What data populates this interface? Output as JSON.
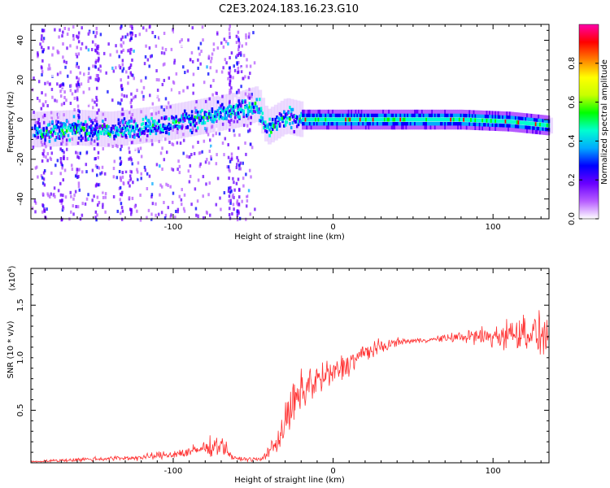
{
  "title": "C2E3.2024.183.16.23.G10",
  "chart_data": [
    {
      "type": "heatmap",
      "panel": "spectrogram",
      "xlabel": "Height of straight line (km)",
      "ylabel": "Frequency (Hz)",
      "xlim": [
        -189,
        135
      ],
      "ylim": [
        -50,
        48
      ],
      "x_ticks": [
        -100,
        0,
        100
      ],
      "x_tick_labels": [
        "-100",
        "0",
        "100"
      ],
      "y_ticks": [
        -40,
        -20,
        0,
        20,
        40
      ],
      "y_tick_labels": [
        "-40",
        "-20",
        "0",
        "20",
        "40"
      ],
      "colorbar": {
        "label": "Normalized spectral amplitude",
        "range": [
          0,
          1
        ],
        "ticks": [
          0.0,
          0.2,
          0.4,
          0.6,
          0.8
        ],
        "tick_labels": [
          "0.0",
          "0.2",
          "0.4",
          "0.6",
          "0.8"
        ],
        "colors": [
          "#ffffff",
          "#b65cff",
          "#6a00ff",
          "#0000ff",
          "#00aaff",
          "#00ffd0",
          "#00ff00",
          "#c8ff00",
          "#ffff00",
          "#ff8000",
          "#ff0000",
          "#ff00aa"
        ]
      },
      "ridge": [
        {
          "x": -185,
          "f": -5
        },
        {
          "x": -160,
          "f": -4
        },
        {
          "x": -140,
          "f": -5
        },
        {
          "x": -120,
          "f": -3
        },
        {
          "x": -100,
          "f": -1
        },
        {
          "x": -80,
          "f": 2
        },
        {
          "x": -60,
          "f": 5
        },
        {
          "x": -48,
          "f": 8
        },
        {
          "x": -42,
          "f": -4
        },
        {
          "x": -30,
          "f": 2
        },
        {
          "x": -20,
          "f": 0
        },
        {
          "x": 0,
          "f": 0
        },
        {
          "x": 40,
          "f": 0
        },
        {
          "x": 80,
          "f": 0
        },
        {
          "x": 110,
          "f": -1
        },
        {
          "x": 135,
          "f": -3
        }
      ]
    },
    {
      "type": "line",
      "panel": "snr",
      "xlabel": "Height of straight line (km)",
      "ylabel": "SNR (10 * v/v)",
      "y_scale_label": "(x10",
      "y_scale_exp": "4",
      "y_scale_close": ")",
      "xlim": [
        -189,
        135
      ],
      "ylim": [
        0,
        1.85
      ],
      "x_ticks": [
        -100,
        0,
        100
      ],
      "x_tick_labels": [
        "-100",
        "0",
        "100"
      ],
      "y_ticks": [
        0.5,
        1.0,
        1.5
      ],
      "y_tick_labels": [
        "0.5",
        "1.0",
        "1.5"
      ],
      "color": "#ff3333",
      "envelope": [
        {
          "x": -189,
          "y": 0.01,
          "noise": 0.01
        },
        {
          "x": -160,
          "y": 0.03,
          "noise": 0.03
        },
        {
          "x": -120,
          "y": 0.05,
          "noise": 0.04
        },
        {
          "x": -90,
          "y": 0.1,
          "noise": 0.08
        },
        {
          "x": -70,
          "y": 0.18,
          "noise": 0.15
        },
        {
          "x": -62,
          "y": 0.04,
          "noise": 0.03
        },
        {
          "x": -45,
          "y": 0.03,
          "noise": 0.03
        },
        {
          "x": -35,
          "y": 0.2,
          "noise": 0.15
        },
        {
          "x": -25,
          "y": 0.55,
          "noise": 0.35
        },
        {
          "x": -15,
          "y": 0.75,
          "noise": 0.3
        },
        {
          "x": 0,
          "y": 0.85,
          "noise": 0.2
        },
        {
          "x": 20,
          "y": 1.05,
          "noise": 0.15
        },
        {
          "x": 40,
          "y": 1.15,
          "noise": 0.05
        },
        {
          "x": 60,
          "y": 1.17,
          "noise": 0.03
        },
        {
          "x": 80,
          "y": 1.2,
          "noise": 0.08
        },
        {
          "x": 100,
          "y": 1.2,
          "noise": 0.18
        },
        {
          "x": 120,
          "y": 1.25,
          "noise": 0.25
        },
        {
          "x": 135,
          "y": 1.2,
          "noise": 0.3
        }
      ]
    }
  ]
}
